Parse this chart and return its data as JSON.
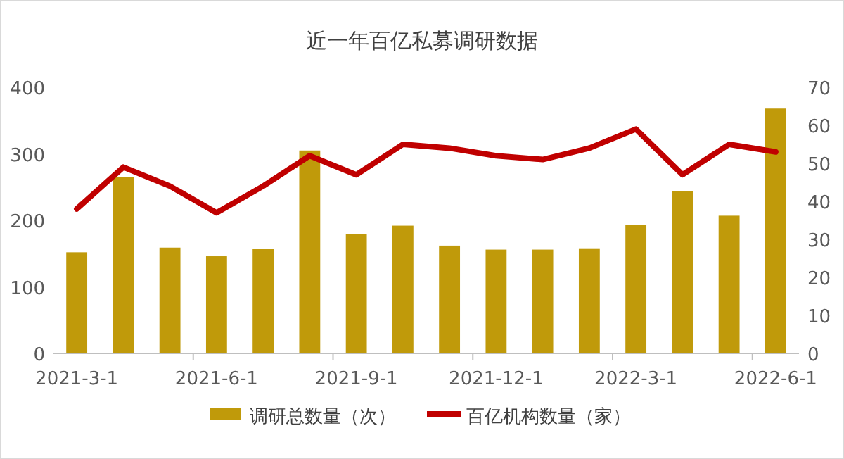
{
  "chart_data": {
    "type": "bar",
    "title": "近一年百亿私募调研数据",
    "categories": [
      "2021-3-1",
      null,
      null,
      "2021-6-1",
      null,
      null,
      "2021-9-1",
      null,
      null,
      "2021-12-1",
      null,
      null,
      "2022-3-1",
      null,
      null,
      "2022-6-1"
    ],
    "series": [
      {
        "name": "调研总数量（次）",
        "color": "#c09a0a",
        "values": [
          152,
          265,
          159,
          146,
          157,
          305,
          179,
          192,
          162,
          156,
          156,
          158,
          193,
          244,
          207,
          368
        ]
      },
      {
        "name": "百亿机构数量（家）",
        "type": "line",
        "axis": "y2",
        "color": "#c00000",
        "values": [
          38,
          49,
          44,
          37,
          44,
          52,
          47,
          55,
          54,
          52,
          51,
          54,
          59,
          47,
          55,
          53
        ]
      }
    ],
    "ylim": [
      0,
      400
    ],
    "yticks": [
      0,
      100,
      200,
      300,
      400
    ],
    "y2lim": [
      0,
      70
    ],
    "y2ticks": [
      0,
      10,
      20,
      30,
      40,
      50,
      60,
      70
    ],
    "legend": "bottom"
  }
}
